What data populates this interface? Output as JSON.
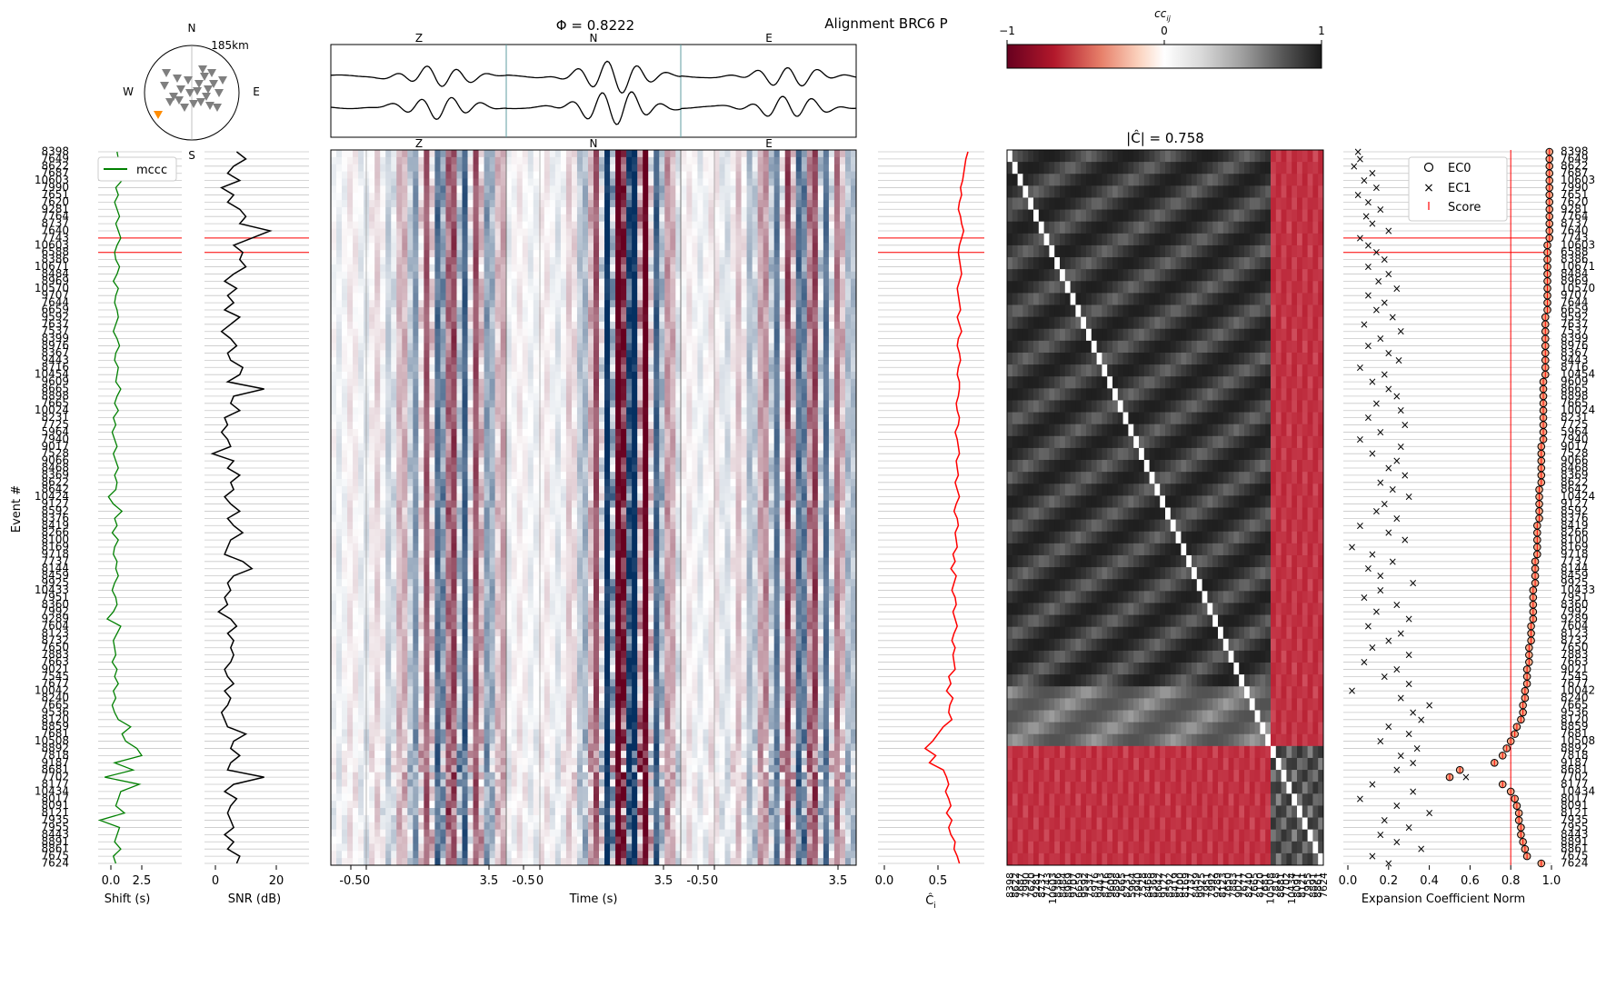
{
  "figure": {
    "suptitle": "Alignment BRC6 P",
    "phi_label": "Φ = 0.8222",
    "y_axis_label": "Event #"
  },
  "map": {
    "north": "N",
    "south": "S",
    "east": "E",
    "west": "W",
    "radius_label": "185km",
    "colors": {
      "stations": "#7f7f7f",
      "target": "#ff8c00"
    }
  },
  "waveform_panel": {
    "components": [
      "Z",
      "N",
      "E"
    ],
    "x_tick_labels": [
      "-0.5",
      "0",
      "3.5",
      "-0.5",
      "0",
      "3.5",
      "-0.5",
      "0",
      "3.5"
    ],
    "xlabel": "Time (s)"
  },
  "shift_panel": {
    "xlabel": "Shift (s)",
    "x_tick_labels": [
      "0.0",
      "2.5"
    ],
    "legend": "mccc",
    "color": "#008000"
  },
  "snr_panel": {
    "xlabel": "SNR (dB)",
    "x_tick_labels": [
      "0",
      "20"
    ]
  },
  "ci_panel": {
    "xlabel": "Ĉ",
    "xlabel_sub": "i",
    "x_tick_labels": [
      "0.0",
      "0.5"
    ],
    "color": "#ff0000"
  },
  "matrix_panel": {
    "title": "|Ĉ| = 0.758",
    "colorbar_label": "cc",
    "colorbar_label_sub": "ij",
    "colorbar_ticks": [
      "−1",
      "0",
      "1"
    ]
  },
  "ec_panel": {
    "xlabel": "Expansion Coefficient Norm",
    "x_tick_labels": [
      "0.0",
      "0.2",
      "0.4",
      "0.6",
      "0.8",
      "1.0"
    ],
    "legend": [
      "EC0",
      "EC1",
      "Score"
    ],
    "score_threshold": 0.8
  },
  "event_labels": [
    "8398",
    "7649",
    "8622",
    "7687",
    "10603",
    "7990",
    "7651",
    "7620",
    "9281",
    "7764",
    "8737",
    "7640",
    "7743",
    "10603",
    "6588",
    "8386",
    "10671",
    "8484",
    "8969",
    "10570",
    "9707",
    "7644",
    "6659",
    "9592",
    "7637",
    "7537",
    "8399",
    "8976",
    "8367",
    "9443",
    "8716",
    "10454",
    "9609",
    "8665",
    "8898",
    "7665",
    "10024",
    "8231",
    "7725",
    "5964",
    "7940",
    "9017",
    "7528",
    "9066",
    "8468",
    "8369",
    "8622",
    "8642",
    "10424",
    "9127",
    "8592",
    "8376",
    "8419",
    "8266",
    "8100",
    "8169",
    "9718",
    "7737",
    "8144",
    "8459",
    "9925",
    "10433",
    "7951",
    "8360",
    "7992",
    "9289",
    "7604",
    "8123",
    "8732",
    "7650",
    "7883",
    "7663",
    "9021",
    "7545",
    "7677",
    "10042",
    "8240",
    "7665",
    "9536",
    "8120",
    "8859",
    "7681",
    "10508",
    "8892",
    "7818",
    "9187",
    "8681",
    "7702",
    "8177",
    "10434",
    "8017",
    "8091",
    "8121",
    "7935",
    "7955",
    "8443",
    "8891",
    "8861",
    "7675",
    "7624"
  ],
  "chart_data": {
    "type": "seismic-alignment",
    "n_events": 100,
    "phi": 0.8222,
    "c_hat_norm": 0.758,
    "shift_s": [
      0.5,
      0.6,
      0.7,
      0.5,
      0.9,
      0.4,
      0.6,
      0.3,
      0.5,
      0.7,
      0.4,
      0.6,
      0.8,
      0.5,
      0.3,
      0.4,
      0.7,
      0.5,
      0.2,
      0.6,
      0.4,
      0.3,
      0.5,
      0.6,
      0.4,
      0.2,
      0.5,
      0.7,
      0.4,
      0.3,
      0.6,
      0.5,
      0.4,
      0.8,
      0.5,
      0.3,
      0.6,
      0.2,
      0.4,
      0.1,
      0.3,
      0.5,
      0.2,
      0.4,
      0.6,
      0.3,
      0.5,
      0.4,
      -0.2,
      0.2,
      0.9,
      0.3,
      0.5,
      0.1,
      0.6,
      0.3,
      0.2,
      0.5,
      0.4,
      0.6,
      0.3,
      0.1,
      0.4,
      0.5,
      0.2,
      -0.3,
      0.8,
      0.5,
      0.2,
      0.3,
      0.4,
      0.1,
      0.5,
      0.3,
      0.6,
      0.2,
      0.4,
      0.1,
      0.3,
      0.6,
      1.6,
      0.9,
      1.2,
      2.1,
      2.5,
      0.3,
      1.8,
      -0.5,
      2.3,
      0.8,
      0.6,
      0.4,
      1.1,
      -0.9,
      0.7,
      0.5,
      0.3,
      0.8,
      0.2,
      0.4
    ],
    "snr_db": [
      7,
      10,
      6,
      4,
      8,
      2,
      6,
      4,
      8,
      10,
      8,
      18,
      12,
      6,
      9,
      8,
      10,
      6,
      3,
      7,
      4,
      6,
      3,
      8,
      5,
      2,
      5,
      7,
      4,
      5,
      9,
      8,
      4,
      16,
      6,
      5,
      8,
      3,
      4,
      2,
      4,
      5,
      -1,
      6,
      4,
      8,
      5,
      6,
      3,
      5,
      8,
      4,
      6,
      9,
      5,
      4,
      3,
      9,
      12,
      6,
      4,
      5,
      3,
      4,
      1,
      5,
      7,
      4,
      6,
      5,
      6,
      5,
      3,
      4,
      6,
      3,
      5,
      4,
      2,
      3,
      4,
      10,
      6,
      5,
      8,
      5,
      4,
      16,
      6,
      3,
      7,
      5,
      4,
      5,
      6,
      3,
      6,
      4,
      8,
      7
    ],
    "ci": [
      0.78,
      0.76,
      0.75,
      0.74,
      0.73,
      0.71,
      0.72,
      0.7,
      0.69,
      0.71,
      0.72,
      0.74,
      0.72,
      0.7,
      0.69,
      0.7,
      0.71,
      0.72,
      0.7,
      0.68,
      0.69,
      0.7,
      0.71,
      0.68,
      0.7,
      0.72,
      0.69,
      0.68,
      0.7,
      0.71,
      0.69,
      0.68,
      0.7,
      0.7,
      0.69,
      0.67,
      0.68,
      0.7,
      0.69,
      0.66,
      0.68,
      0.69,
      0.7,
      0.67,
      0.68,
      0.69,
      0.66,
      0.68,
      0.7,
      0.67,
      0.65,
      0.68,
      0.69,
      0.66,
      0.67,
      0.68,
      0.64,
      0.66,
      0.62,
      0.67,
      0.65,
      0.63,
      0.66,
      0.67,
      0.64,
      0.66,
      0.68,
      0.65,
      0.63,
      0.66,
      0.64,
      0.65,
      0.66,
      0.6,
      0.62,
      0.58,
      0.64,
      0.61,
      0.6,
      0.63,
      0.55,
      0.5,
      0.45,
      0.38,
      0.48,
      0.42,
      0.55,
      0.58,
      0.6,
      0.57,
      0.6,
      0.62,
      0.58,
      0.63,
      0.6,
      0.62,
      0.66,
      0.65,
      0.68,
      0.7
    ],
    "ec0": [
      0.99,
      0.99,
      0.99,
      0.99,
      0.99,
      0.99,
      0.99,
      0.99,
      0.99,
      0.99,
      0.99,
      0.99,
      0.99,
      0.98,
      0.98,
      0.98,
      0.98,
      0.98,
      0.98,
      0.98,
      0.98,
      0.98,
      0.98,
      0.97,
      0.97,
      0.97,
      0.97,
      0.97,
      0.97,
      0.97,
      0.97,
      0.97,
      0.96,
      0.96,
      0.96,
      0.96,
      0.96,
      0.96,
      0.96,
      0.96,
      0.96,
      0.95,
      0.95,
      0.95,
      0.95,
      0.95,
      0.95,
      0.94,
      0.94,
      0.94,
      0.94,
      0.94,
      0.93,
      0.93,
      0.93,
      0.93,
      0.93,
      0.92,
      0.92,
      0.92,
      0.92,
      0.91,
      0.91,
      0.91,
      0.91,
      0.91,
      0.9,
      0.9,
      0.9,
      0.89,
      0.89,
      0.89,
      0.88,
      0.88,
      0.88,
      0.87,
      0.87,
      0.86,
      0.86,
      0.85,
      0.83,
      0.82,
      0.8,
      0.78,
      0.76,
      0.72,
      0.55,
      0.5,
      0.76,
      0.8,
      0.82,
      0.83,
      0.84,
      0.84,
      0.85,
      0.85,
      0.86,
      0.87,
      0.88,
      0.95
    ],
    "ec1": [
      0.05,
      0.06,
      0.03,
      0.12,
      0.08,
      0.14,
      0.05,
      0.1,
      0.16,
      0.09,
      0.12,
      0.2,
      0.06,
      0.1,
      0.14,
      0.18,
      0.1,
      0.2,
      0.15,
      0.24,
      0.1,
      0.18,
      0.14,
      0.22,
      0.08,
      0.26,
      0.16,
      0.1,
      0.2,
      0.25,
      0.06,
      0.18,
      0.12,
      0.2,
      0.24,
      0.14,
      0.26,
      0.1,
      0.28,
      0.16,
      0.06,
      0.26,
      0.12,
      0.24,
      0.2,
      0.28,
      0.16,
      0.22,
      0.3,
      0.18,
      0.14,
      0.24,
      0.06,
      0.2,
      0.28,
      0.02,
      0.12,
      0.22,
      0.1,
      0.16,
      0.32,
      0.16,
      0.08,
      0.24,
      0.14,
      0.3,
      0.1,
      0.26,
      0.2,
      0.12,
      0.3,
      0.08,
      0.24,
      0.18,
      0.3,
      0.02,
      0.26,
      0.4,
      0.32,
      0.36,
      0.2,
      0.3,
      0.16,
      0.34,
      0.26,
      0.32,
      0.24,
      0.58,
      0.12,
      0.32,
      0.06,
      0.24,
      0.4,
      0.18,
      0.3,
      0.16,
      0.24,
      0.36,
      0.12,
      0.2
    ],
    "flagged_rows": [
      12,
      14
    ]
  }
}
